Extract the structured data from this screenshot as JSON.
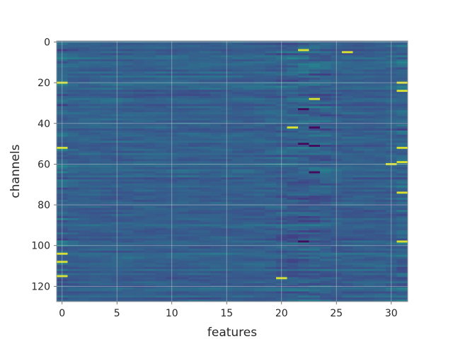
{
  "chart_data": {
    "type": "heatmap",
    "title": "",
    "xlabel": "features",
    "ylabel": "channels",
    "x_range": [
      -0.5,
      31.5
    ],
    "y_range": [
      -0.5,
      127.5
    ],
    "y_inverted": true,
    "x_ticks": [
      0,
      5,
      10,
      15,
      20,
      25,
      30
    ],
    "y_ticks": [
      0,
      20,
      40,
      60,
      80,
      100,
      120
    ],
    "grid": true,
    "colormap": "viridis",
    "n_rows": 128,
    "n_cols": 32,
    "bright_cells": [
      {
        "row": 20,
        "col": 0
      },
      {
        "row": 52,
        "col": 0
      },
      {
        "row": 104,
        "col": 0
      },
      {
        "row": 108,
        "col": 0
      },
      {
        "row": 115,
        "col": 0
      },
      {
        "row": 20,
        "col": 31
      },
      {
        "row": 24,
        "col": 31
      },
      {
        "row": 52,
        "col": 31
      },
      {
        "row": 59,
        "col": 31
      },
      {
        "row": 60,
        "col": 30
      },
      {
        "row": 74,
        "col": 31
      },
      {
        "row": 98,
        "col": 31
      },
      {
        "row": 4,
        "col": 22
      },
      {
        "row": 5,
        "col": 26
      },
      {
        "row": 42,
        "col": 21
      },
      {
        "row": 28,
        "col": 23
      },
      {
        "row": 116,
        "col": 20
      }
    ],
    "dark_cells": [
      {
        "row": 42,
        "col": 23
      },
      {
        "row": 50,
        "col": 22
      },
      {
        "row": 51,
        "col": 23
      },
      {
        "row": 98,
        "col": 22
      },
      {
        "row": 64,
        "col": 23
      },
      {
        "row": 33,
        "col": 22
      }
    ]
  }
}
